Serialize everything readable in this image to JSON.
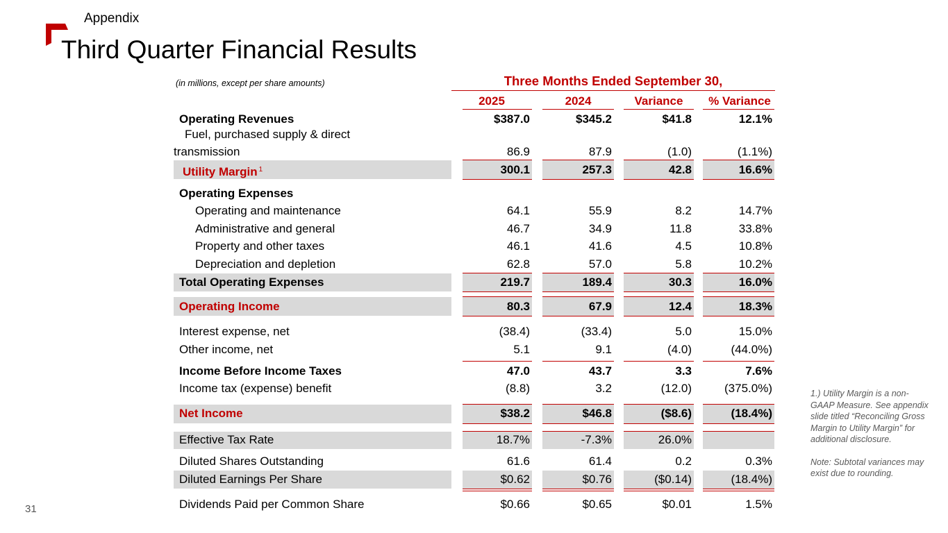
{
  "slide": {
    "section": "Appendix",
    "title": "Third Quarter Financial Results",
    "page_number": "31",
    "accent_color": "#c00000"
  },
  "table": {
    "units_note": "(in millions, except per share amounts)",
    "period_header": "Three Months Ended September 30,",
    "columns": [
      "2025",
      "2024",
      "Variance",
      "% Variance"
    ],
    "rows": [
      {
        "label": "Operating Revenues",
        "values": [
          "$387.0",
          "$345.2",
          "$41.8",
          "12.1%"
        ]
      },
      {
        "label_line1": "Fuel, purchased supply & direct",
        "label_line2": "transmission",
        "values": [
          "86.9",
          "87.9",
          "(1.0)",
          "(1.1%)"
        ]
      },
      {
        "label": "Utility Margin",
        "footnote": "1",
        "values": [
          "300.1",
          "257.3",
          "42.8",
          "16.6%"
        ]
      },
      {
        "label": "Operating Expenses"
      },
      {
        "label": "Operating and maintenance",
        "values": [
          "64.1",
          "55.9",
          "8.2",
          "14.7%"
        ]
      },
      {
        "label": "Administrative and general",
        "values": [
          "46.7",
          "34.9",
          "11.8",
          "33.8%"
        ]
      },
      {
        "label": "Property and other taxes",
        "values": [
          "46.1",
          "41.6",
          "4.5",
          "10.8%"
        ]
      },
      {
        "label": "Depreciation and depletion",
        "values": [
          "62.8",
          "57.0",
          "5.8",
          "10.2%"
        ]
      },
      {
        "label": "Total Operating Expenses",
        "values": [
          "219.7",
          "189.4",
          "30.3",
          "16.0%"
        ]
      },
      {
        "label": "Operating Income",
        "values": [
          "80.3",
          "67.9",
          "12.4",
          "18.3%"
        ]
      },
      {
        "label": "Interest expense, net",
        "values": [
          "(38.4)",
          "(33.4)",
          "5.0",
          "15.0%"
        ]
      },
      {
        "label": "Other income, net",
        "values": [
          "5.1",
          "9.1",
          "(4.0)",
          "(44.0%)"
        ]
      },
      {
        "label": "Income Before Income Taxes",
        "values": [
          "47.0",
          "43.7",
          "3.3",
          "7.6%"
        ]
      },
      {
        "label": "Income tax (expense) benefit",
        "values": [
          "(8.8)",
          "3.2",
          "(12.0)",
          "(375.0%)"
        ]
      },
      {
        "label": "Net Income",
        "values": [
          "$38.2",
          "$46.8",
          "($8.6)",
          "(18.4%)"
        ]
      },
      {
        "label": "Effective Tax Rate",
        "values": [
          "18.7%",
          "-7.3%",
          "26.0%",
          ""
        ]
      },
      {
        "label": "Diluted Shares Outstanding",
        "values": [
          "61.6",
          "61.4",
          "0.2",
          "0.3%"
        ]
      },
      {
        "label": "Diluted Earnings Per Share",
        "values": [
          "$0.62",
          "$0.76",
          "($0.14)",
          "(18.4%)"
        ]
      },
      {
        "label": "Dividends Paid per Common Share",
        "values": [
          "$0.66",
          "$0.65",
          "$0.01",
          "1.5%"
        ]
      }
    ]
  },
  "notes": {
    "footnote_1": "1.) Utility Margin is a non-GAAP Measure. See appendix slide titled “Reconciling Gross Margin to Utility Margin” for additional disclosure.",
    "rounding_note": "Note: Subtotal variances may exist due to rounding."
  }
}
